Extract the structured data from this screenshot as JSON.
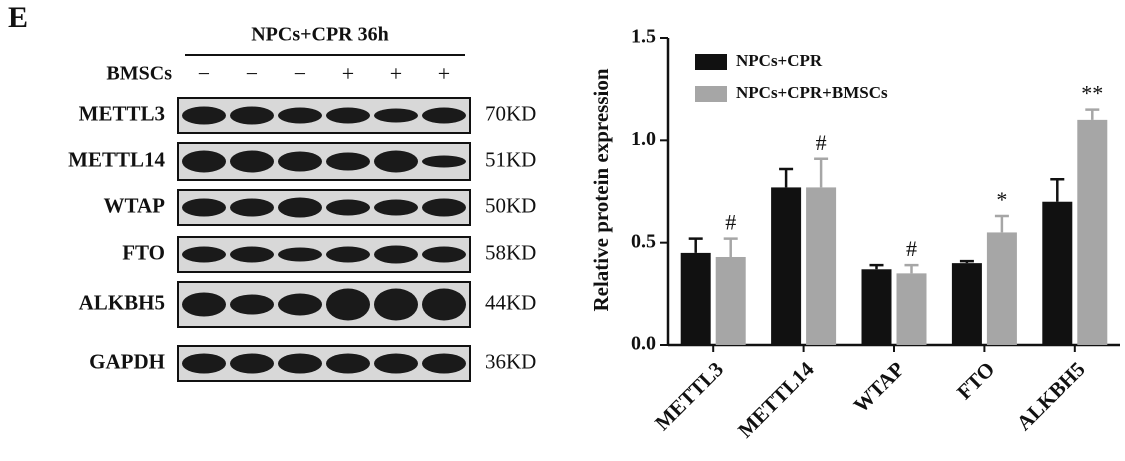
{
  "panel_label": "E",
  "blot": {
    "header": "NPCs+CPR 36h",
    "treatment_label": "BMSCs",
    "treatment_signs": [
      "−",
      "−",
      "−",
      "+",
      "+",
      "+"
    ],
    "rows": [
      {
        "protein": "METTL3",
        "size": "70KD"
      },
      {
        "protein": "METTL14",
        "size": "51KD"
      },
      {
        "protein": "WTAP",
        "size": "50KD"
      },
      {
        "protein": "FTO",
        "size": "58KD"
      },
      {
        "protein": "ALKBH5",
        "size": "44KD"
      },
      {
        "protein": "GAPDH",
        "size": "36KD"
      }
    ]
  },
  "chart_data": {
    "type": "bar",
    "y_label": "Relative protein expression",
    "categories": [
      "METTL3",
      "METTL14",
      "WTAP",
      "FTO",
      "ALKBH5"
    ],
    "series": [
      {
        "name": "NPCs+CPR",
        "color": "#111111",
        "values": [
          0.45,
          0.77,
          0.37,
          0.4,
          0.7
        ],
        "errors": [
          0.07,
          0.09,
          0.02,
          0.01,
          0.11
        ]
      },
      {
        "name": "NPCs+CPR+BMSCs",
        "color": "#a6a6a6",
        "values": [
          0.43,
          0.77,
          0.35,
          0.55,
          1.1
        ],
        "errors": [
          0.09,
          0.14,
          0.04,
          0.08,
          0.05
        ],
        "annotations": [
          "#",
          "#",
          "#",
          "*",
          "**"
        ]
      }
    ],
    "ylim": [
      0,
      1.5
    ],
    "yticks": [
      {
        "value": 0,
        "label": "0.0"
      },
      0.5,
      {
        "value": 1,
        "label": "1.0"
      },
      1.5
    ]
  }
}
